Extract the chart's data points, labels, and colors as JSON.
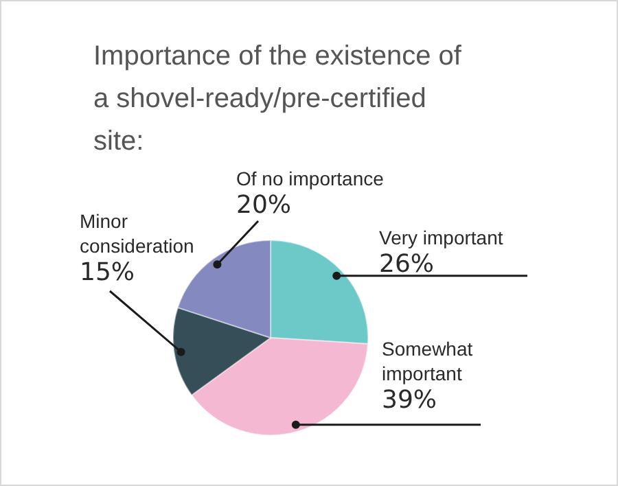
{
  "chart_data": {
    "type": "pie",
    "title": "Importance of the existence of a shovel-ready/pre-certified site:",
    "categories": [
      "Very important",
      "Somewhat important",
      "Minor consideration",
      "Of no importance"
    ],
    "values": [
      26,
      39,
      15,
      20
    ],
    "colors": [
      "#6cc9c8",
      "#f5b8d2",
      "#364e58",
      "#8489c0"
    ],
    "value_labels": [
      "26%",
      "39%",
      "15%",
      "20%"
    ]
  }
}
